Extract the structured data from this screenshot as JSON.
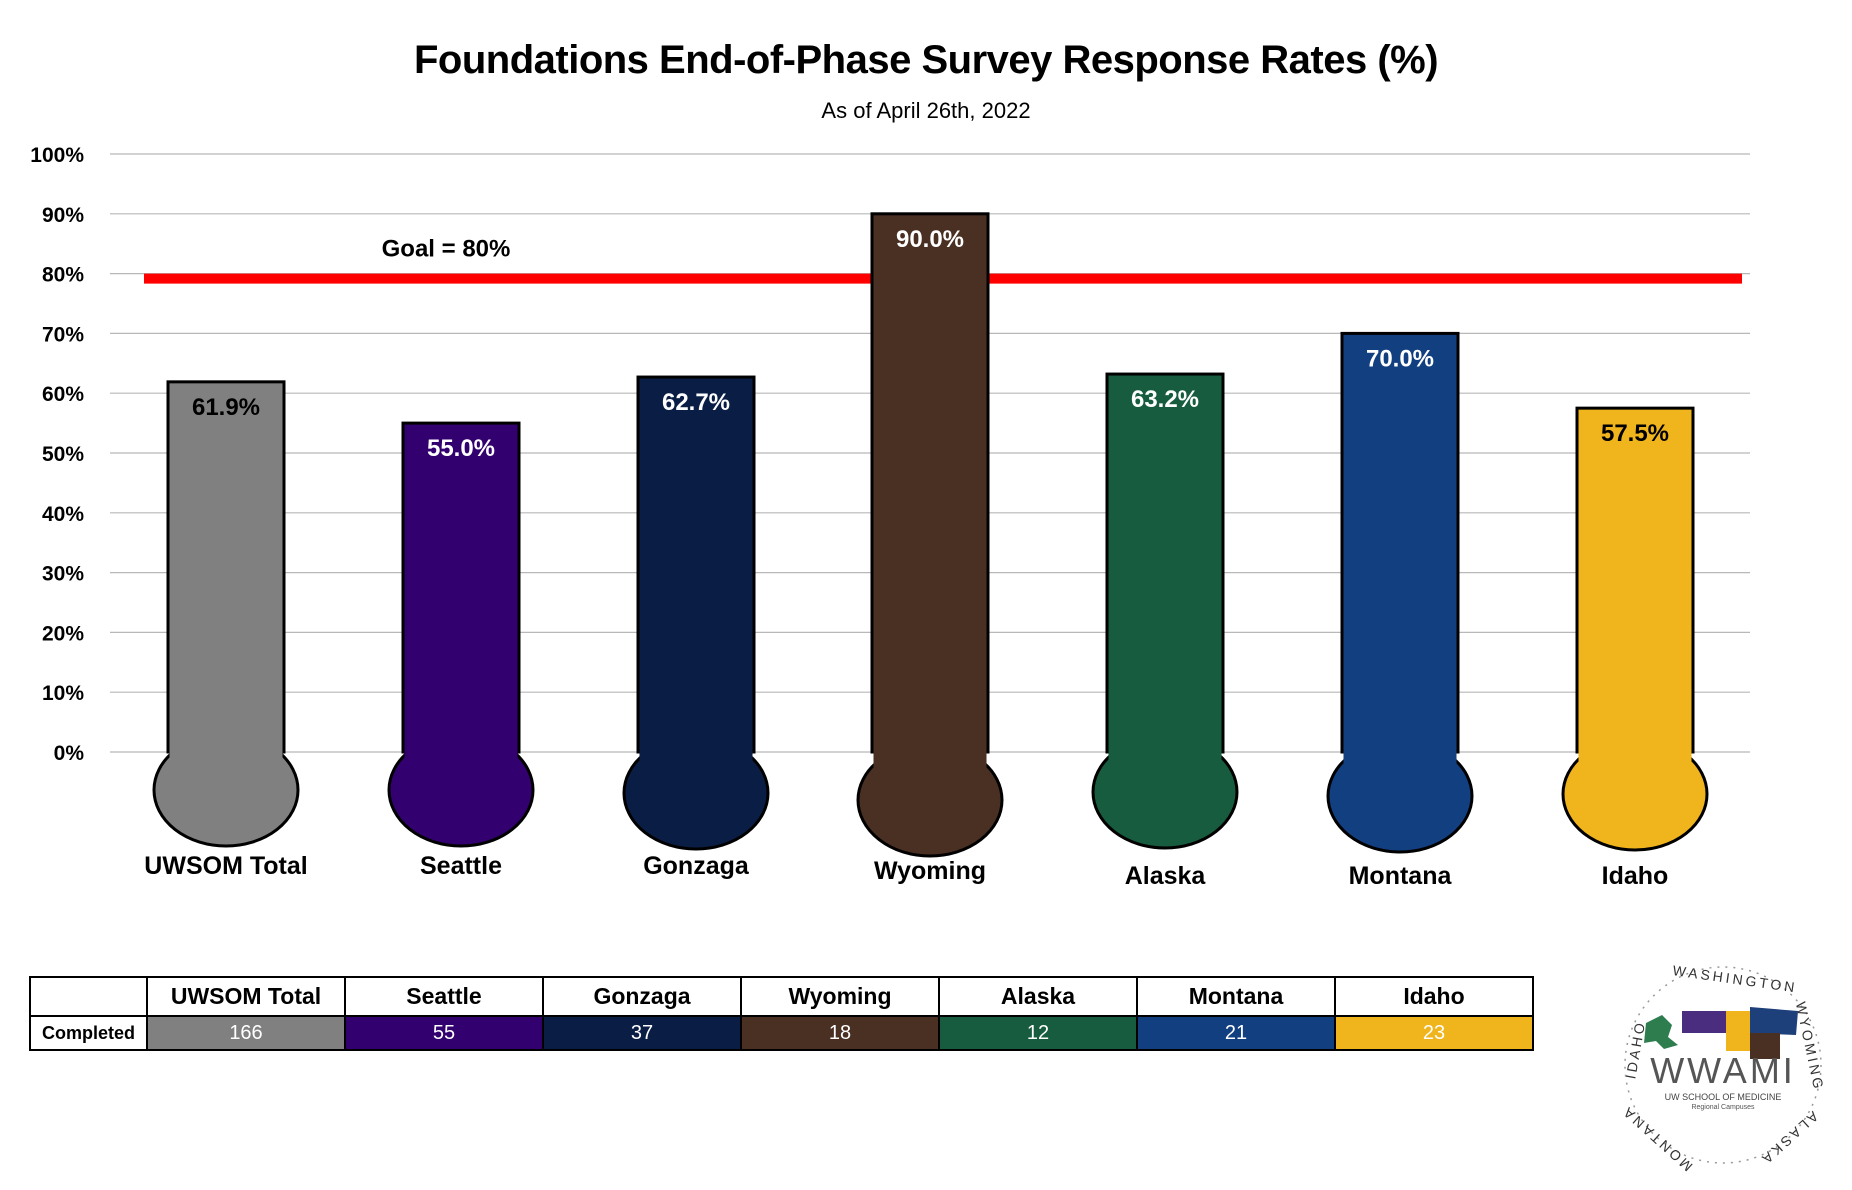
{
  "chart_data": {
    "type": "bar",
    "title": "Foundations End-of-Phase Survey Response Rates (%)",
    "subtitle": "As of April 26th, 2022",
    "categories": [
      "UWSOM Total",
      "Seattle",
      "Gonzaga",
      "Wyoming",
      "Alaska",
      "Montana",
      "Idaho"
    ],
    "values": [
      61.9,
      55.0,
      62.7,
      90.0,
      63.2,
      70.0,
      57.5
    ],
    "value_labels": [
      "61.9%",
      "55.0%",
      "62.7%",
      "90.0%",
      "63.2%",
      "70.0%",
      "57.5%"
    ],
    "colors": [
      "#808080",
      "#33006F",
      "#0A1E45",
      "#4A2F23",
      "#175C3E",
      "#123F80",
      "#F0B41C"
    ],
    "label_colors": [
      "#000000",
      "#ffffff",
      "#ffffff",
      "#ffffff",
      "#ffffff",
      "#ffffff",
      "#000000"
    ],
    "ylim": [
      0,
      100
    ],
    "yticks": [
      0,
      10,
      20,
      30,
      40,
      50,
      60,
      70,
      80,
      90,
      100
    ],
    "ytick_labels": [
      "0%",
      "10%",
      "20%",
      "30%",
      "40%",
      "50%",
      "60%",
      "70%",
      "80%",
      "90%",
      "100%"
    ],
    "grid": true,
    "goal": {
      "value": 80,
      "label": "Goal = 80%",
      "color": "#FF0000"
    }
  },
  "table": {
    "headers": [
      "UWSOM Total",
      "Seattle",
      "Gonzaga",
      "Wyoming",
      "Alaska",
      "Montana",
      "Idaho"
    ],
    "row_label": "Completed",
    "values": [
      "166",
      "55",
      "37",
      "18",
      "12",
      "21",
      "23"
    ]
  },
  "logo": {
    "name": "WWAMI",
    "subtitle": "UW SCHOOL OF MEDICINE",
    "subtitle2": "Regional Campuses",
    "ring_text": [
      "WASHINGTON",
      "WYOMING",
      "ALASKA",
      "MONTANA",
      "IDAHO"
    ]
  }
}
